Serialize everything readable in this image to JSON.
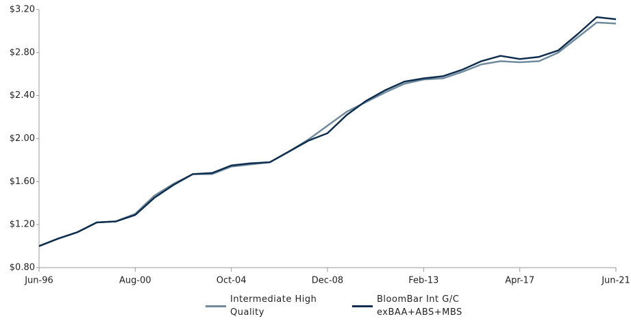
{
  "chart_data": {
    "type": "line",
    "x": [
      "Jun-96",
      null,
      null,
      null,
      null,
      "Aug-00",
      null,
      null,
      null,
      null,
      "Oct-04",
      null,
      null,
      null,
      null,
      "Dec-08",
      null,
      null,
      null,
      null,
      "Feb-13",
      null,
      null,
      null,
      null,
      "Apr-17",
      null,
      null,
      null,
      null,
      "Jun-21"
    ],
    "series": [
      {
        "name": "Intermediate High Quality",
        "color": "#6f8a9c",
        "values": [
          1.0,
          1.07,
          1.13,
          1.22,
          1.23,
          1.3,
          1.47,
          1.58,
          1.67,
          1.67,
          1.74,
          1.76,
          1.78,
          1.88,
          1.99,
          2.12,
          2.25,
          2.34,
          2.43,
          2.51,
          2.55,
          2.56,
          2.62,
          2.69,
          2.72,
          2.71,
          2.72,
          2.8,
          2.94,
          3.08,
          3.07
        ]
      },
      {
        "name": "BloomBar Int G/C exBAA+ABS+MBS",
        "color": "#0d2d4f",
        "values": [
          1.0,
          1.07,
          1.13,
          1.22,
          1.23,
          1.29,
          1.45,
          1.57,
          1.67,
          1.68,
          1.75,
          1.77,
          1.78,
          1.88,
          1.98,
          2.05,
          2.22,
          2.35,
          2.45,
          2.53,
          2.56,
          2.58,
          2.64,
          2.72,
          2.77,
          2.74,
          2.76,
          2.82,
          2.97,
          3.13,
          3.11
        ]
      }
    ],
    "ylim": [
      0.8,
      3.2
    ],
    "yticks": [
      {
        "value": 0.8,
        "label": "$0.80"
      },
      {
        "value": 1.2,
        "label": "$1.20"
      },
      {
        "value": 1.6,
        "label": "$1.60"
      },
      {
        "value": 2.0,
        "label": "$2.00"
      },
      {
        "value": 2.4,
        "label": "$2.40"
      },
      {
        "value": 2.8,
        "label": "$2.80"
      },
      {
        "value": 3.2,
        "label": "$3.20"
      }
    ],
    "grid": false,
    "legend": "bottom"
  }
}
